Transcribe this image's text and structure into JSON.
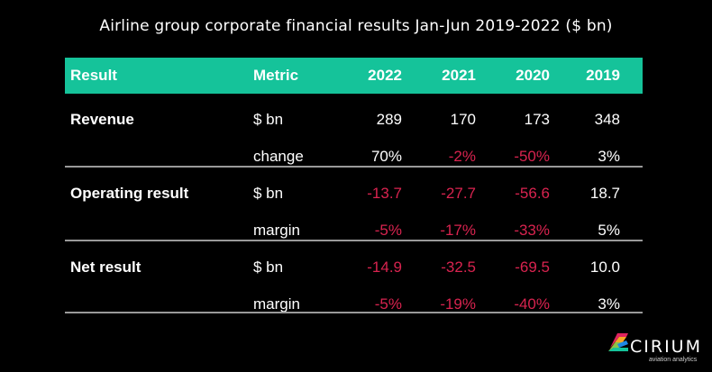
{
  "title": "Airline group corporate financial results Jan-Jun 2019-2022 ($ bn)",
  "colors": {
    "header_bg": "#15c39a",
    "negative": "#d8234f",
    "text": "#ffffff",
    "background": "#000000"
  },
  "table": {
    "headers": [
      "Result",
      "Metric",
      "2022",
      "2021",
      "2020",
      "2019"
    ],
    "rows": [
      {
        "result": "Revenue",
        "metric": "$ bn",
        "values": [
          "289",
          "170",
          "173",
          "348"
        ],
        "negative": [
          false,
          false,
          false,
          false
        ]
      },
      {
        "result": "",
        "metric": "change",
        "values": [
          "70%",
          "-2%",
          "-50%",
          "3%"
        ],
        "negative": [
          false,
          true,
          true,
          false
        ]
      },
      {
        "result": "Operating result",
        "metric": "$ bn",
        "values": [
          "-13.7",
          "-27.7",
          "-56.6",
          "18.7"
        ],
        "negative": [
          true,
          true,
          true,
          false
        ]
      },
      {
        "result": "",
        "metric": "margin",
        "values": [
          "-5%",
          "-17%",
          "-33%",
          "5%"
        ],
        "negative": [
          true,
          true,
          true,
          false
        ]
      },
      {
        "result": "Net result",
        "metric": "$ bn",
        "values": [
          "-14.9",
          "-32.5",
          "-69.5",
          "10.0"
        ],
        "negative": [
          true,
          true,
          true,
          false
        ]
      },
      {
        "result": "",
        "metric": "margin",
        "values": [
          "-5%",
          "-19%",
          "-40%",
          "3%"
        ],
        "negative": [
          true,
          true,
          true,
          false
        ]
      }
    ]
  },
  "logo": {
    "name": "CIRIUM",
    "tagline": "aviation analytics",
    "icon": "cirium-logo-icon"
  }
}
